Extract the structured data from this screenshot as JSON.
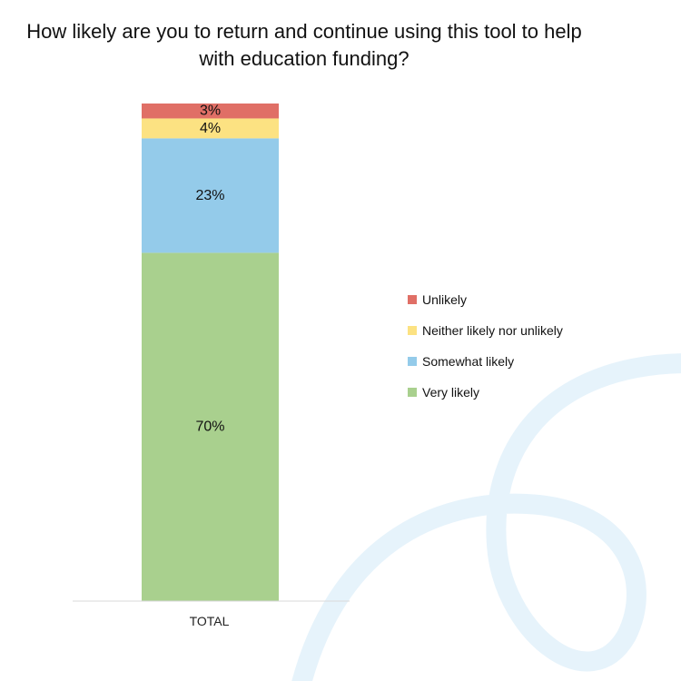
{
  "chart_data": {
    "type": "bar",
    "stacked": true,
    "title_lines": [
      "How likely are you to return and continue using this tool to help",
      "with education funding?"
    ],
    "categories": [
      "TOTAL"
    ],
    "series": [
      {
        "name": "Very likely",
        "values": [
          70
        ],
        "label": "70%",
        "color": "#a9d08e"
      },
      {
        "name": "Somewhat likely",
        "values": [
          23
        ],
        "label": "23%",
        "color": "#94cbea"
      },
      {
        "name": "Neither likely nor unlikely",
        "values": [
          4
        ],
        "label": "4%",
        "color": "#fce282"
      },
      {
        "name": "Unlikely",
        "values": [
          3
        ],
        "label": "3%",
        "color": "#e06f66"
      }
    ],
    "ylim": [
      0,
      100
    ],
    "grid": false,
    "legend_position": "right",
    "legend_order": [
      "Unlikely",
      "Neither likely nor unlikely",
      "Somewhat likely",
      "Very likely"
    ]
  },
  "decoration": {
    "swirl_color": "#e6f3fb"
  }
}
